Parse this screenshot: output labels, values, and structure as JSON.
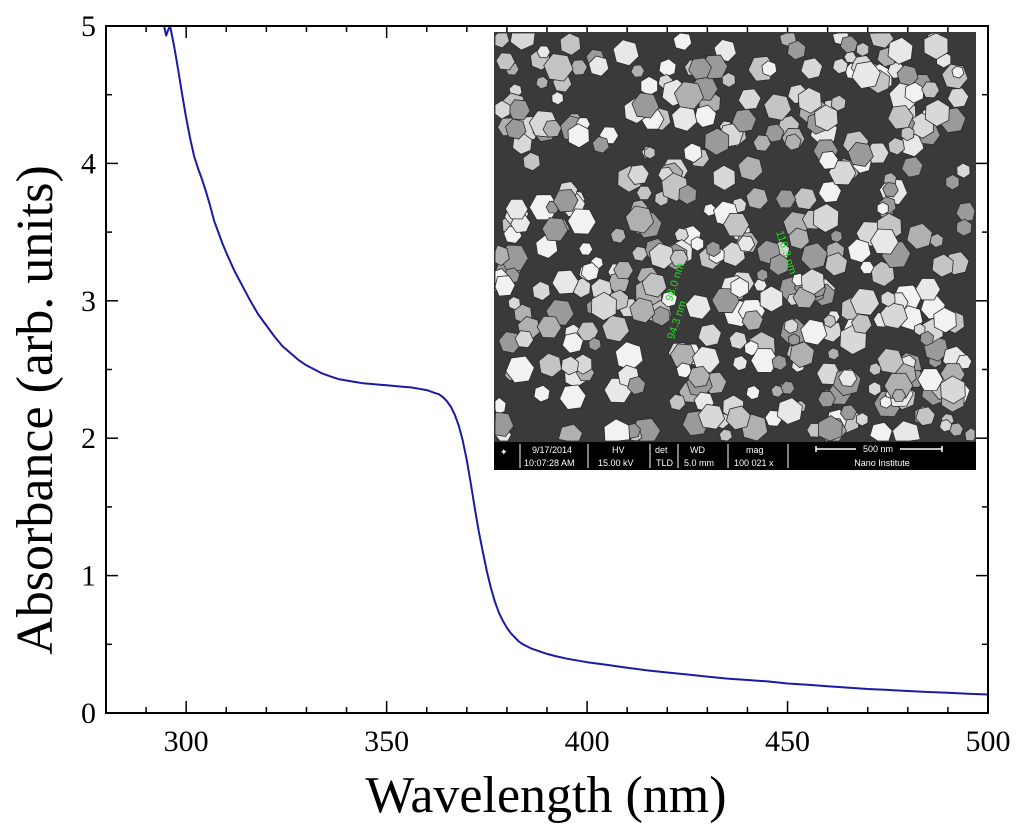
{
  "chart_data": {
    "type": "line",
    "title": "",
    "xlabel": "Wavelength (nm)",
    "ylabel": "Absorbance (arb. units)",
    "xlim": [
      280,
      500
    ],
    "ylim": [
      0,
      5
    ],
    "xticks": [
      300,
      350,
      400,
      450,
      500
    ],
    "yticks": [
      0,
      1,
      2,
      3,
      4,
      5
    ],
    "x_minor_step": 10,
    "y_minor_step": 0.5,
    "grid": false,
    "line_color": "#1a1aa6",
    "series": [
      {
        "name": "Absorbance",
        "x": [
          294.5,
          295,
          295.5,
          296,
          297,
          298,
          299,
          300,
          301,
          302,
          303,
          304,
          305,
          306,
          307,
          308,
          309,
          310,
          312,
          314,
          316,
          318,
          320,
          322,
          324,
          326,
          328,
          330,
          332,
          334,
          336,
          338,
          340,
          342,
          344,
          346,
          348,
          350,
          352,
          354,
          356,
          358,
          360,
          362,
          363,
          364,
          365,
          366,
          367,
          368,
          369,
          370,
          371,
          372,
          373,
          374,
          375,
          376,
          377,
          378,
          379,
          380,
          381,
          382,
          383,
          384,
          385,
          386,
          388,
          390,
          392,
          395,
          398,
          400,
          405,
          410,
          415,
          420,
          425,
          430,
          435,
          440,
          445,
          450,
          455,
          460,
          465,
          470,
          475,
          480,
          485,
          490,
          495,
          500
        ],
        "y": [
          5.0,
          4.93,
          4.97,
          5.0,
          4.85,
          4.68,
          4.5,
          4.33,
          4.18,
          4.05,
          3.96,
          3.88,
          3.79,
          3.69,
          3.58,
          3.5,
          3.42,
          3.35,
          3.22,
          3.11,
          3.0,
          2.9,
          2.82,
          2.74,
          2.67,
          2.62,
          2.57,
          2.53,
          2.5,
          2.47,
          2.45,
          2.43,
          2.42,
          2.41,
          2.4,
          2.395,
          2.39,
          2.385,
          2.38,
          2.375,
          2.37,
          2.36,
          2.35,
          2.33,
          2.32,
          2.3,
          2.27,
          2.23,
          2.17,
          2.09,
          1.98,
          1.84,
          1.67,
          1.49,
          1.32,
          1.17,
          1.03,
          0.91,
          0.81,
          0.73,
          0.67,
          0.62,
          0.58,
          0.55,
          0.52,
          0.5,
          0.485,
          0.47,
          0.45,
          0.43,
          0.415,
          0.395,
          0.38,
          0.37,
          0.35,
          0.33,
          0.31,
          0.295,
          0.28,
          0.265,
          0.25,
          0.24,
          0.23,
          0.215,
          0.205,
          0.195,
          0.185,
          0.175,
          0.168,
          0.16,
          0.153,
          0.147,
          0.14,
          0.135
        ]
      }
    ]
  },
  "inset": {
    "scale_bar_label": "500 nm",
    "info_headers": [
      "9/17/2014",
      "HV",
      "det",
      "WD",
      "mag"
    ],
    "info_values": [
      "10:07:28 AM",
      "15.00 kV",
      "TLD",
      "5.0 mm",
      "100 021 x"
    ],
    "institute": "Nano Institute",
    "measurements": [
      "98.0 nm",
      "94.3 nm",
      "116.3 nm"
    ]
  }
}
